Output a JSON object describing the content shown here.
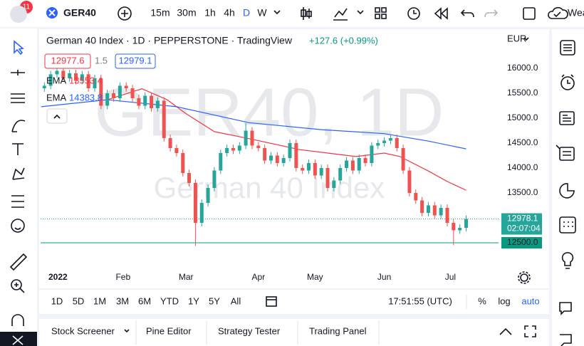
{
  "toolbar": {
    "badge": "11",
    "symbol": "GER40",
    "intervals": [
      "15m",
      "30m",
      "1h",
      "4h",
      "D",
      "W"
    ],
    "truncated": "Wea"
  },
  "legend": {
    "bid": 12977.6,
    "spread": 1.5,
    "ask": 12979.1,
    "change": "+127.6 (+0.99%)"
  },
  "currency": "EUR",
  "watermark": {
    "symbol": "GER40, 1D",
    "name": "German 40 Index"
  },
  "timeframes": [
    "1D",
    "5D",
    "1M",
    "3M",
    "6M",
    "YTD",
    "1Y",
    "5Y",
    "All"
  ],
  "clock": "17:51:55 (UTC)",
  "scale_options": [
    "%",
    "log",
    "auto"
  ],
  "bottom_tabs": [
    "Stock Screener",
    "Pine Editor",
    "Strategy Tester",
    "Trading Panel"
  ],
  "chart_data": {
    "type": "candlestick",
    "title": "German 40 Index · 1D · PEPPERSTONE · TradingView",
    "x": [
      -4,
      -2,
      0,
      2,
      4,
      6,
      8,
      10,
      12,
      14,
      16,
      18,
      20,
      22,
      24,
      26,
      28,
      30,
      32,
      34,
      36,
      38,
      40,
      42,
      44,
      46,
      48,
      50,
      52,
      54,
      56,
      58,
      60,
      62,
      64,
      66,
      68,
      70,
      72,
      74,
      76,
      78,
      80,
      82,
      84,
      86,
      88,
      90,
      92,
      94,
      96,
      98,
      100,
      102,
      104,
      106,
      108,
      110,
      112,
      114,
      116,
      118,
      120,
      122,
      124,
      126,
      128,
      130
    ],
    "open": [
      15600,
      15650,
      15880,
      15950,
      15800,
      15900,
      15750,
      15880,
      15600,
      15800,
      15250,
      15500,
      15400,
      15650,
      15600,
      15400,
      15250,
      15450,
      15200,
      15350,
      14600,
      14400,
      14300,
      13900,
      13700,
      12900,
      13300,
      13600,
      13950,
      14300,
      14400,
      14350,
      14450,
      14750,
      14450,
      14400,
      14150,
      14250,
      14100,
      14200,
      14500,
      14000,
      13950,
      14100,
      13850,
      14000,
      13600,
      13750,
      14000,
      14150,
      13950,
      14200,
      14100,
      14450,
      14500,
      14550,
      14600,
      14400,
      13950,
      13500,
      13350,
      13100,
      13250,
      13050,
      13200,
      12900,
      12750,
      12800
    ],
    "high": [
      15720,
      15950,
      16020,
      16020,
      15970,
      15970,
      15950,
      15950,
      15870,
      15870,
      15570,
      15570,
      15720,
      15720,
      15670,
      15470,
      15520,
      15520,
      15420,
      15420,
      14670,
      14470,
      14370,
      13970,
      13770,
      13370,
      13670,
      14020,
      14370,
      14470,
      14470,
      14520,
      14900,
      14820,
      14520,
      14470,
      14320,
      14320,
      14270,
      14570,
      14570,
      14070,
      14170,
      14170,
      14070,
      14070,
      13820,
      14070,
      14220,
      14220,
      14270,
      14270,
      14520,
      14570,
      14620,
      14670,
      14670,
      14470,
      14020,
      13570,
      13420,
      13320,
      13320,
      13270,
      13270,
      12970,
      12870,
      13050
    ],
    "low": [
      15530,
      15580,
      15810,
      15730,
      15730,
      15680,
      15680,
      15530,
      15530,
      15180,
      15180,
      15330,
      15330,
      15530,
      15330,
      15180,
      15180,
      15130,
      15130,
      14530,
      14330,
      14230,
      13830,
      13630,
      12440,
      12830,
      13230,
      13530,
      13880,
      14230,
      14280,
      14280,
      14380,
      14380,
      14330,
      14080,
      14080,
      14030,
      14030,
      14130,
      13930,
      13880,
      13880,
      13780,
      13780,
      13530,
      13530,
      13680,
      13930,
      13880,
      13880,
      14030,
      14030,
      14380,
      14430,
      14480,
      14330,
      13880,
      13430,
      13280,
      13030,
      13030,
      12980,
      12980,
      12830,
      12450,
      12680,
      12730
    ],
    "close": [
      15650,
      15880,
      15950,
      15800,
      15900,
      15750,
      15880,
      15600,
      15800,
      15250,
      15500,
      15400,
      15650,
      15600,
      15400,
      15250,
      15450,
      15200,
      15350,
      14600,
      14400,
      14300,
      13900,
      13700,
      12900,
      13300,
      13600,
      13950,
      14300,
      14400,
      14350,
      14450,
      14750,
      14450,
      14400,
      14150,
      14250,
      14100,
      14200,
      14500,
      14000,
      13950,
      14100,
      13850,
      14000,
      13600,
      13750,
      14000,
      14150,
      13950,
      14200,
      14100,
      14450,
      14500,
      14550,
      14600,
      14400,
      13950,
      13500,
      13350,
      13100,
      13250,
      13050,
      13200,
      12900,
      12750,
      12800,
      12978
    ],
    "up_color": "#26a69a",
    "down_color": "#ef5350",
    "overlays": [
      {
        "name": "EMA",
        "value": 13553.4,
        "color": "#f23645",
        "x": [
          16,
          27,
          35,
          41,
          50,
          61,
          77,
          86,
          95,
          104,
          109,
          118,
          124,
          130
        ],
        "values": [
          15370,
          15590,
          15370,
          15090,
          14730,
          14590,
          14370,
          14300,
          14230,
          14300,
          14230,
          13940,
          13730,
          13553.4
        ]
      },
      {
        "name": "EMA",
        "value": 14383.8,
        "color": "#2962ff",
        "x": [
          -5,
          16,
          38,
          61,
          84,
          104,
          118,
          130
        ],
        "values": [
          15230,
          15370,
          15230,
          14910,
          14770,
          14690,
          14540,
          14383.8
        ]
      }
    ],
    "last_price": 12978.1,
    "countdown": "02:07:04",
    "level": {
      "value": 12500,
      "label": "12500.0"
    },
    "level_color": "#089981",
    "xlim": [
      -5.2,
      140.3
    ],
    "ylim": [
      11686,
      16771
    ],
    "xticks": [
      {
        "value": 0,
        "label": "2022"
      },
      {
        "value": 21,
        "label": "Feb"
      },
      {
        "value": 41,
        "label": "Mar"
      },
      {
        "value": 64,
        "label": "Apr"
      },
      {
        "value": 82,
        "label": "May"
      },
      {
        "value": 104,
        "label": "Jun"
      },
      {
        "value": 125,
        "label": "Jul"
      }
    ],
    "yticks": [
      {
        "value": 13500,
        "label": "13500.0"
      },
      {
        "value": 14000,
        "label": "14000.0"
      },
      {
        "value": 14500,
        "label": "14500.0"
      },
      {
        "value": 15000,
        "label": "15000.0"
      },
      {
        "value": 15500,
        "label": "15500.0"
      },
      {
        "value": 16000,
        "label": "16000.0"
      }
    ]
  }
}
